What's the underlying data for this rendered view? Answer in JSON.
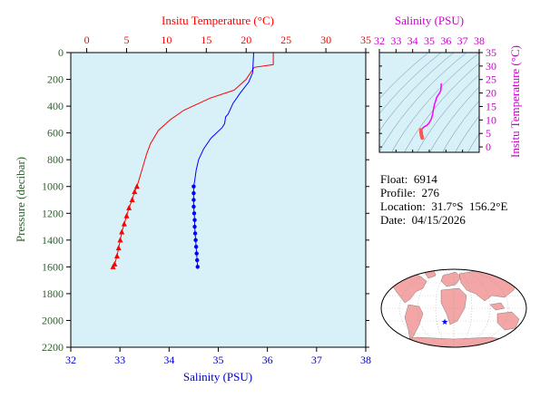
{
  "info": {
    "float_label": "Float:",
    "float_value": "6914",
    "profile_label": "Profile:",
    "profile_value": "276",
    "location_label": "Location:",
    "location_value": "31.7°S  156.2°E",
    "date_label": "Date:",
    "date_value": "04/15/2026"
  },
  "chart_data": [
    {
      "type": "line",
      "title": "",
      "top_axis": {
        "label": "Insitu Temperature (°C)",
        "range": [
          -2,
          35
        ],
        "ticks": [
          0,
          5,
          10,
          15,
          20,
          25,
          30,
          35
        ],
        "color": "#ff0000"
      },
      "bottom_axis": {
        "label": "Salinity (PSU)",
        "range": [
          32,
          38
        ],
        "ticks": [
          32,
          33,
          34,
          35,
          36,
          37,
          38
        ],
        "color": "#0000cc"
      },
      "left_axis": {
        "label": "Pressure (decibar)",
        "range": [
          0,
          2200
        ],
        "inverted": true,
        "ticks": [
          0,
          200,
          400,
          600,
          800,
          1000,
          1200,
          1400,
          1600,
          1800,
          2000,
          2200
        ],
        "color": "#2e5f2e"
      },
      "background_color": "#d8f1f9",
      "series": [
        {
          "axis": "temperature",
          "color": "#ff0000",
          "marker": "triangle",
          "points": [
            [
              23.4,
              0
            ],
            [
              23.4,
              90
            ],
            [
              21.0,
              110
            ],
            [
              20.0,
              200
            ],
            [
              18.5,
              280
            ],
            [
              15.5,
              340
            ],
            [
              12.2,
              430
            ],
            [
              10.5,
              500
            ],
            [
              9.0,
              580
            ],
            [
              8.0,
              680
            ],
            [
              7.5,
              760
            ],
            [
              7.0,
              860
            ],
            [
              6.5,
              960
            ],
            [
              6.3,
              1000
            ],
            [
              6.0,
              1040
            ],
            [
              5.7,
              1100
            ],
            [
              5.3,
              1160
            ],
            [
              5.0,
              1220
            ],
            [
              4.7,
              1280
            ],
            [
              4.4,
              1340
            ],
            [
              4.2,
              1400
            ],
            [
              4.0,
              1460
            ],
            [
              3.8,
              1520
            ],
            [
              3.5,
              1580
            ],
            [
              3.3,
              1600
            ]
          ],
          "marker_from_index": 13
        },
        {
          "axis": "salinity",
          "color": "#0000ff",
          "marker": "circle",
          "points": [
            [
              35.72,
              0
            ],
            [
              35.7,
              150
            ],
            [
              35.62,
              220
            ],
            [
              35.45,
              300
            ],
            [
              35.3,
              380
            ],
            [
              35.2,
              460
            ],
            [
              35.15,
              480
            ],
            [
              35.13,
              530
            ],
            [
              35.08,
              560
            ],
            [
              34.85,
              640
            ],
            [
              34.7,
              720
            ],
            [
              34.6,
              800
            ],
            [
              34.55,
              880
            ],
            [
              34.52,
              960
            ],
            [
              34.5,
              1000
            ],
            [
              34.5,
              1050
            ],
            [
              34.5,
              1100
            ],
            [
              34.5,
              1150
            ],
            [
              34.51,
              1200
            ],
            [
              34.52,
              1250
            ],
            [
              34.52,
              1300
            ],
            [
              34.53,
              1350
            ],
            [
              34.54,
              1400
            ],
            [
              34.55,
              1450
            ],
            [
              34.56,
              1500
            ],
            [
              34.57,
              1550
            ],
            [
              34.58,
              1600
            ]
          ],
          "marker_from_index": 14
        }
      ]
    },
    {
      "type": "scatter",
      "title": "",
      "top_axis": {
        "label": "Salinity (PSU)",
        "range": [
          32,
          38
        ],
        "ticks": [
          32,
          33,
          34,
          35,
          36,
          37,
          38
        ],
        "color": "#cc00cc"
      },
      "right_axis": {
        "label": "Insitu Temperature (°C)",
        "range": [
          -2,
          35
        ],
        "ticks": [
          0,
          5,
          10,
          15,
          20,
          25,
          30,
          35
        ],
        "color": "#cc00cc"
      },
      "background_color": "#d8f1f9",
      "density_contours": true,
      "series": [
        {
          "color": "#ff00ff",
          "points": [
            [
              35.72,
              23.4
            ],
            [
              35.7,
              21.0
            ],
            [
              35.62,
              20.0
            ],
            [
              35.45,
              18.5
            ],
            [
              35.3,
              15.5
            ],
            [
              35.2,
              12.2
            ],
            [
              35.13,
              10.5
            ],
            [
              35.0,
              9.0
            ],
            [
              34.85,
              8.0
            ],
            [
              34.7,
              7.5
            ],
            [
              34.62,
              7.0
            ],
            [
              34.55,
              6.5
            ]
          ]
        },
        {
          "color": "#ff5555",
          "points": [
            [
              34.5,
              6.3
            ],
            [
              34.5,
              6.0
            ],
            [
              34.5,
              5.7
            ],
            [
              34.51,
              5.3
            ],
            [
              34.52,
              5.0
            ],
            [
              34.52,
              4.7
            ],
            [
              34.53,
              4.4
            ],
            [
              34.54,
              4.2
            ],
            [
              34.55,
              4.0
            ],
            [
              34.56,
              3.8
            ],
            [
              34.57,
              3.5
            ],
            [
              34.58,
              3.3
            ]
          ]
        }
      ]
    }
  ],
  "map": {
    "float_lon": 156.2,
    "float_lat": -31.7,
    "ocean_color": "#ffffff",
    "land_color": "#f4a6a6",
    "marker_color": "#0000ff"
  }
}
